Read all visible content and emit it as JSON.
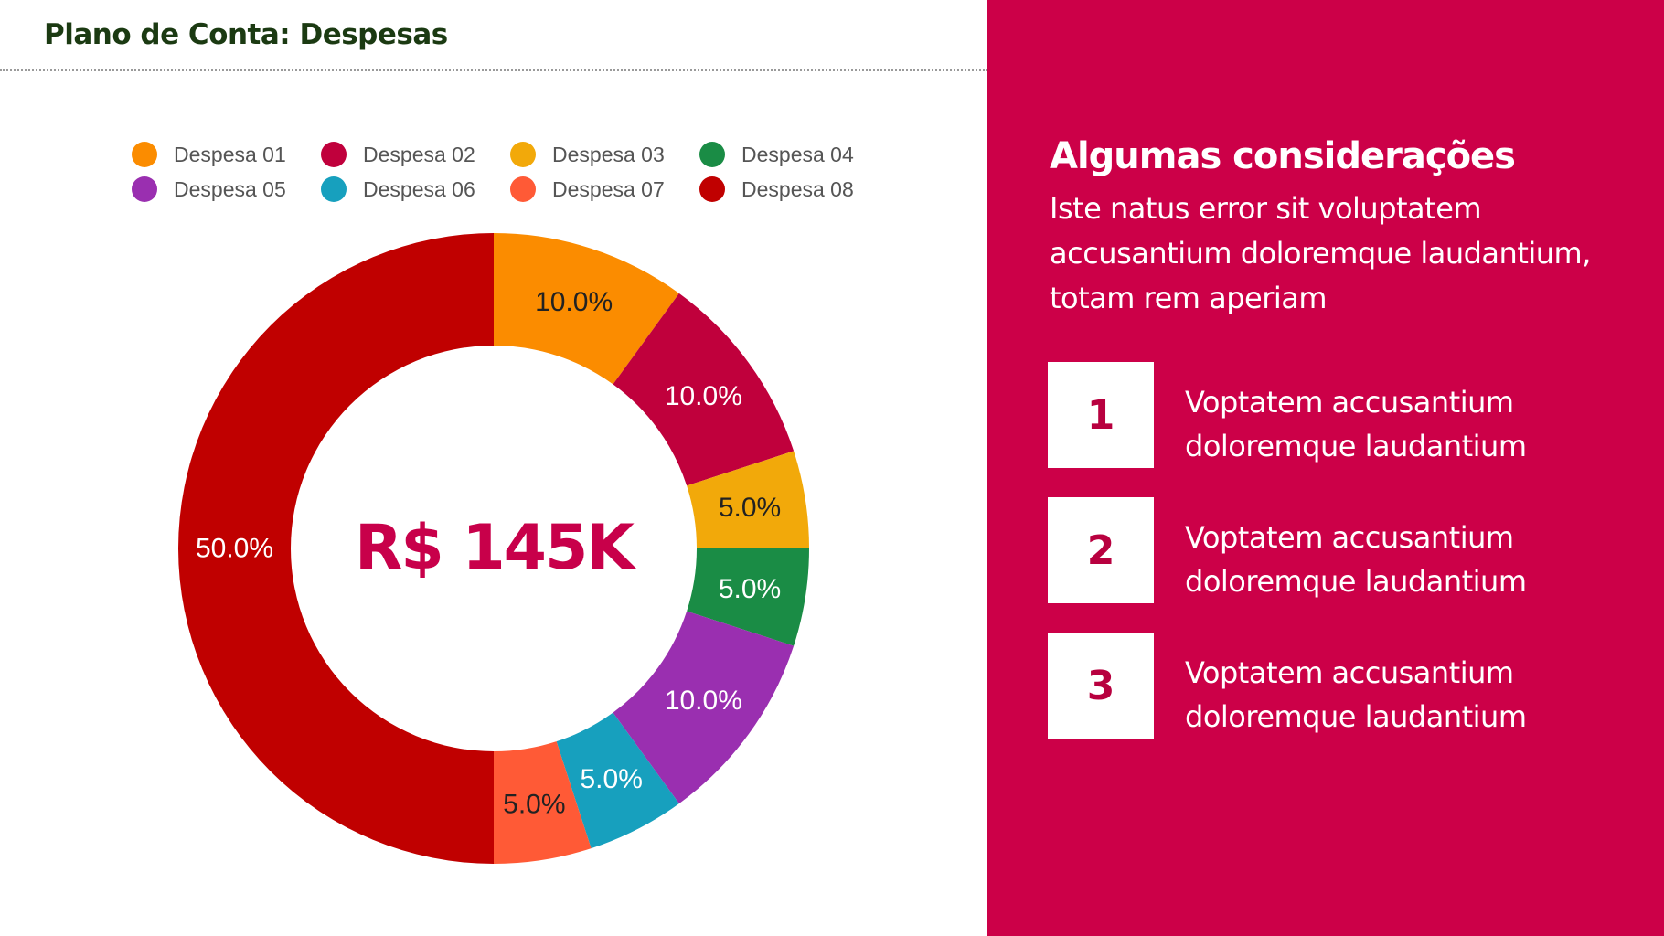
{
  "page_title": "Plano de Conta: Despesas",
  "chart_data": {
    "type": "pie",
    "donut": true,
    "center_label": "R$ 145K",
    "legend_position": "top",
    "series": [
      {
        "name": "Despesa 01",
        "value": 10.0,
        "label": "10.0%",
        "color": "#fb8c00",
        "label_color": "#222222"
      },
      {
        "name": "Despesa 02",
        "value": 10.0,
        "label": "10.0%",
        "color": "#c0003c",
        "label_color": "#ffffff"
      },
      {
        "name": "Despesa 03",
        "value": 5.0,
        "label": "5.0%",
        "color": "#f2a90a",
        "label_color": "#222222"
      },
      {
        "name": "Despesa 04",
        "value": 5.0,
        "label": "5.0%",
        "color": "#1a8c45",
        "label_color": "#ffffff"
      },
      {
        "name": "Despesa 05",
        "value": 10.0,
        "label": "10.0%",
        "color": "#9a2fb0",
        "label_color": "#ffffff"
      },
      {
        "name": "Despesa 06",
        "value": 5.0,
        "label": "5.0%",
        "color": "#17a0be",
        "label_color": "#ffffff"
      },
      {
        "name": "Despesa 07",
        "value": 5.0,
        "label": "5.0%",
        "color": "#ff5a36",
        "label_color": "#222222"
      },
      {
        "name": "Despesa 08",
        "value": 50.0,
        "label": "50.0%",
        "color": "#c00000",
        "label_color": "#ffffff"
      }
    ]
  },
  "side_panel": {
    "heading": "Algumas considerações",
    "text": "Iste natus error sit voluptatem accusantium doloremque laudantium, totam rem aperiam",
    "items": [
      {
        "number": "1",
        "text": "Voptatem accusantium doloremque laudantium"
      },
      {
        "number": "2",
        "text": "Voptatem accusantium doloremque laudantium"
      },
      {
        "number": "3",
        "text": "Voptatem accusantium doloremque laudantium"
      }
    ],
    "background_color": "#cc0048"
  }
}
